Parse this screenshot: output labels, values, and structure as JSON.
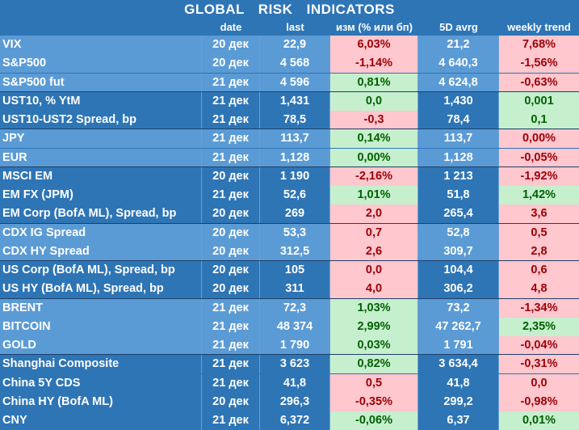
{
  "title": "GLOBAL   RISK   INDICATORS",
  "headers": {
    "date": "date",
    "last": "last",
    "change": "изм (% или бп)",
    "avg": "5D avrg",
    "trend": "weekly trend"
  },
  "colors": {
    "row_light": "#5b9bd5",
    "row_dark": "#2e75b6",
    "positive_bg": "#c6efce",
    "positive_text": "#006100",
    "negative_bg": "#ffc7ce",
    "negative_text": "#9c0006"
  },
  "groups": [
    {
      "shade": "light",
      "rows": [
        {
          "name": "VIX",
          "date": "20 дек",
          "last": "22,9",
          "change": "6,03%",
          "change_dir": "neg",
          "avg": "21,2",
          "trend": "7,68%",
          "trend_dir": "neg"
        },
        {
          "name": "S&P500",
          "date": "20 дек",
          "last": "4 568",
          "change": "-1,14%",
          "change_dir": "neg",
          "avg": "4 640,3",
          "trend": "-1,56%",
          "trend_dir": "neg"
        },
        {
          "name": "S&P500 fut",
          "date": "21 дек",
          "last": "4 596",
          "change": "0,81%",
          "change_dir": "pos",
          "avg": "4 624,8",
          "trend": "-0,63%",
          "trend_dir": "neg"
        }
      ]
    },
    {
      "shade": "dark",
      "rows": [
        {
          "name": "UST10, % YtM",
          "date": "21 дек",
          "last": "1,431",
          "change": "0,0",
          "change_dir": "pos",
          "avg": "1,430",
          "trend": "0,001",
          "trend_dir": "pos"
        },
        {
          "name": "UST10-UST2 Spread, bp",
          "date": "21 дек",
          "last": "78,5",
          "change": "-0,3",
          "change_dir": "neg",
          "avg": "78,4",
          "trend": "0,1",
          "trend_dir": "pos"
        }
      ]
    },
    {
      "shade": "light",
      "rows": [
        {
          "name": "JPY",
          "date": "21 дек",
          "last": "113,7",
          "change": "0,14%",
          "change_dir": "pos",
          "avg": "113,7",
          "trend": "0,00%",
          "trend_dir": "neg"
        },
        {
          "name": "EUR",
          "date": "21 дек",
          "last": "1,128",
          "change": "0,00%",
          "change_dir": "pos",
          "avg": "1,128",
          "trend": "-0,05%",
          "trend_dir": "neg"
        }
      ]
    },
    {
      "shade": "dark",
      "rows": [
        {
          "name": "MSCI EM",
          "date": "20 дек",
          "last": "1 190",
          "change": "-2,16%",
          "change_dir": "neg",
          "avg": "1 213",
          "trend": "-1,92%",
          "trend_dir": "neg"
        },
        {
          "name": "EM FX (JPM)",
          "date": "21 дек",
          "last": "52,6",
          "change": "1,01%",
          "change_dir": "pos",
          "avg": "51,8",
          "trend": "1,42%",
          "trend_dir": "pos"
        },
        {
          "name": "EM Corp (BofA ML), Spread, bp",
          "date": "20 дек",
          "last": "269",
          "change": "2,0",
          "change_dir": "neg",
          "avg": "265,4",
          "trend": "3,6",
          "trend_dir": "neg"
        }
      ]
    },
    {
      "shade": "light",
      "rows": [
        {
          "name": "CDX IG Spread",
          "date": "20 дек",
          "last": "53,3",
          "change": "0,7",
          "change_dir": "neg",
          "avg": "52,8",
          "trend": "0,5",
          "trend_dir": "neg"
        },
        {
          "name": "CDX HY Spread",
          "date": "20 дек",
          "last": "312,5",
          "change": "2,6",
          "change_dir": "neg",
          "avg": "309,7",
          "trend": "2,8",
          "trend_dir": "neg"
        }
      ]
    },
    {
      "shade": "dark",
      "rows": [
        {
          "name": "US Corp (BofA ML), Spread, bp",
          "date": "20 дек",
          "last": "105",
          "change": "0,0",
          "change_dir": "neg",
          "avg": "104,4",
          "trend": "0,6",
          "trend_dir": "neg"
        },
        {
          "name": "US HY (BofA ML), Spread, bp",
          "date": "20 дек",
          "last": "311",
          "change": "4,0",
          "change_dir": "neg",
          "avg": "306,2",
          "trend": "4,8",
          "trend_dir": "neg"
        }
      ]
    },
    {
      "shade": "light",
      "rows": [
        {
          "name": "BRENT",
          "date": "21 дек",
          "last": "72,3",
          "change": "1,03%",
          "change_dir": "pos",
          "avg": "73,2",
          "trend": "-1,34%",
          "trend_dir": "neg"
        },
        {
          "name": "BITCOIN",
          "date": "21 дек",
          "last": "48 374",
          "change": "2,99%",
          "change_dir": "pos",
          "avg": "47 262,7",
          "trend": "2,35%",
          "trend_dir": "pos"
        },
        {
          "name": "GOLD",
          "date": "21 дек",
          "last": "1 790",
          "change": "0,03%",
          "change_dir": "pos",
          "avg": "1 791",
          "trend": "-0,04%",
          "trend_dir": "neg"
        }
      ]
    },
    {
      "shade": "dark",
      "rows": [
        {
          "name": "Shanghai Composite",
          "date": "21 дек",
          "last": "3 623",
          "change": "0,82%",
          "change_dir": "pos",
          "avg": "3 634,4",
          "trend": "-0,31%",
          "trend_dir": "neg"
        },
        {
          "name": "China 5Y CDS",
          "date": "21 дек",
          "last": "41,8",
          "change": "0,5",
          "change_dir": "neg",
          "avg": "41,8",
          "trend": "0,0",
          "trend_dir": "neg"
        },
        {
          "name": "China HY (BofA ML)",
          "date": "20 дек",
          "last": "296,3",
          "change": "-0,35%",
          "change_dir": "neg",
          "avg": "299,2",
          "trend": "-0,98%",
          "trend_dir": "neg"
        },
        {
          "name": "CNY",
          "date": "21 дек",
          "last": "6,372",
          "change": "-0,06%",
          "change_dir": "pos",
          "avg": "6,37",
          "trend": "0,01%",
          "trend_dir": "pos"
        }
      ]
    }
  ]
}
